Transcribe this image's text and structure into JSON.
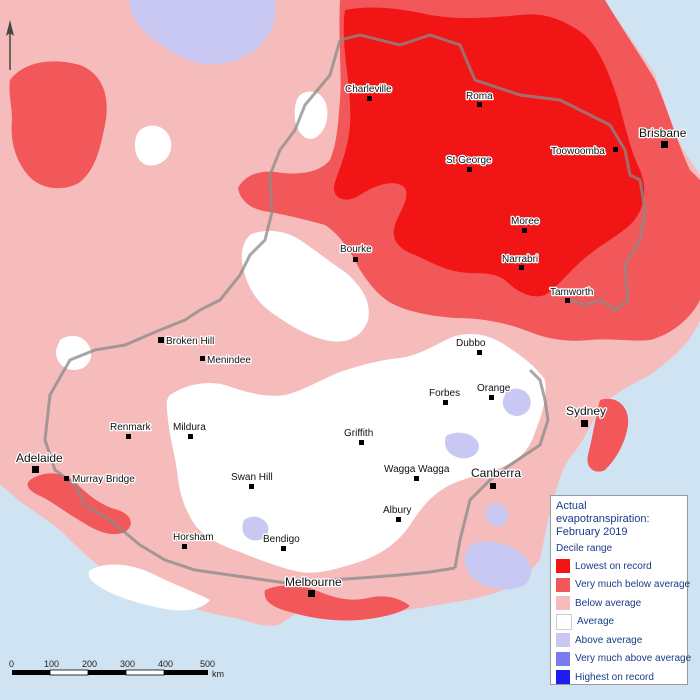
{
  "legend": {
    "title_line1": "Actual",
    "title_line2": "evapotranspiration:",
    "title_line3": "February 2019",
    "subtitle": "Decile range",
    "items": [
      {
        "label": "Lowest on record",
        "color": "#f21515"
      },
      {
        "label": "Very much below average",
        "color": "#f2575a"
      },
      {
        "label": "Below average",
        "color": "#f6bcbc"
      },
      {
        "label": "Average",
        "color": "#ffffff"
      },
      {
        "label": "Above average",
        "color": "#c8c8f2"
      },
      {
        "label": "Very much above average",
        "color": "#7b7bf0"
      },
      {
        "label": "Highest on record",
        "color": "#1d1df0"
      }
    ]
  },
  "cities": {
    "charleville": "Charleville",
    "roma": "Roma",
    "brisbane": "Brisbane",
    "toowoomba": "Toowoomba",
    "st_george": "St George",
    "moree": "Moree",
    "narrabri": "Narrabri",
    "bourke": "Bourke",
    "tamworth": "Tamworth",
    "broken_hill": "Broken Hill",
    "menindee": "Menindee",
    "dubbo": "Dubbo",
    "orange": "Orange",
    "forbes": "Forbes",
    "sydney": "Sydney",
    "renmark": "Renmark",
    "mildura": "Mildura",
    "griffith": "Griffith",
    "adelaide": "Adelaide",
    "wagga_wagga": "Wagga Wagga",
    "canberra": "Canberra",
    "murray_bridge": "Murray Bridge",
    "swan_hill": "Swan Hill",
    "albury": "Albury",
    "horsham": "Horsham",
    "bendigo": "Bendigo",
    "melbourne": "Melbourne"
  },
  "scale": {
    "ticks": [
      "0",
      "100",
      "200",
      "300",
      "400",
      "500"
    ],
    "unit": "km"
  }
}
